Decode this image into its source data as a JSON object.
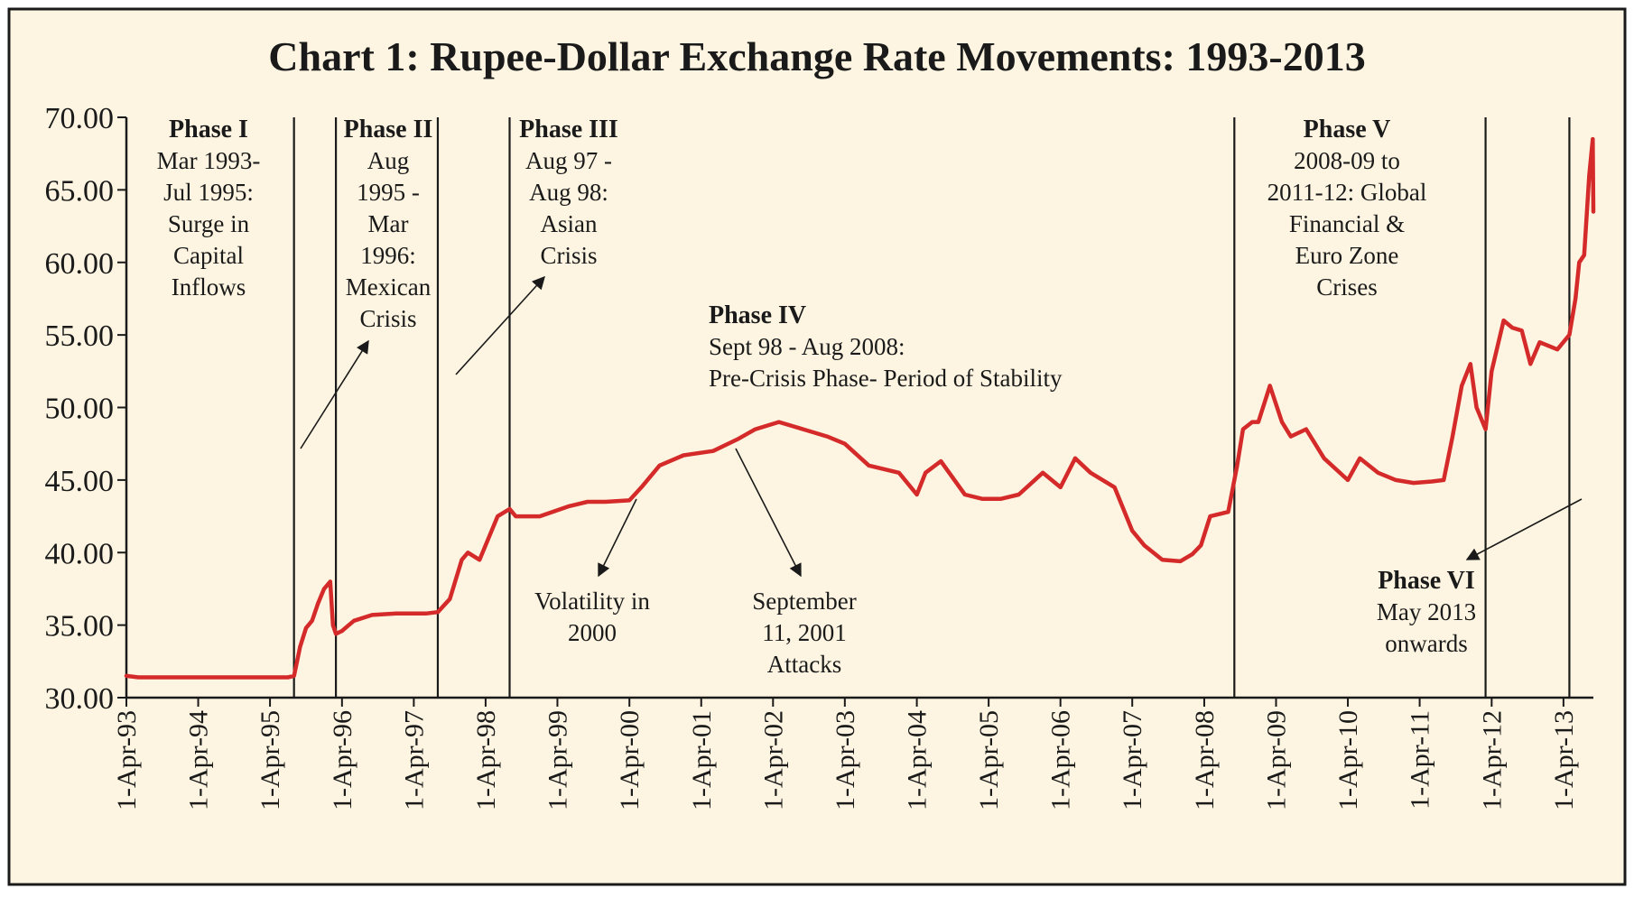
{
  "chart_data": {
    "type": "line",
    "title": "Chart 1: Rupee-Dollar Exchange Rate Movements: 1993-2013",
    "xlabel": "",
    "ylabel": "",
    "ylim": [
      30,
      70
    ],
    "xlim": [
      "1993-04-01",
      "2013-08-31"
    ],
    "yticks": [
      "30.00",
      "35.00",
      "40.00",
      "45.00",
      "50.00",
      "55.00",
      "60.00",
      "65.00",
      "70.00"
    ],
    "xticks": [
      "1-Apr-93",
      "1-Apr-94",
      "1-Apr-95",
      "1-Apr-96",
      "1-Apr-97",
      "1-Apr-98",
      "1-Apr-99",
      "1-Apr-00",
      "1-Apr-01",
      "1-Apr-02",
      "1-Apr-03",
      "1-Apr-04",
      "1-Apr-05",
      "1-Apr-06",
      "1-Apr-07",
      "1-Apr-08",
      "1-Apr-09",
      "1-Apr-10",
      "1-Apr-11",
      "1-Apr-12",
      "1-Apr-13"
    ],
    "grid": false,
    "colors": {
      "line": "#d42a2a",
      "background": "#fdf5e1",
      "frame": "#1a1a1a"
    },
    "phase_boundaries": [
      "1995-08-01",
      "1996-03-01",
      "1997-08-01",
      "1998-08-01",
      "2008-09-01",
      "2012-03-01",
      "2013-05-01"
    ],
    "series": [
      {
        "name": "",
        "x": [
          "1993-04-01",
          "1993-06-01",
          "1993-09-01",
          "1994-01-01",
          "1994-06-01",
          "1995-01-01",
          "1995-03-01",
          "1995-07-01",
          "1995-08-01",
          "1995-09-01",
          "1995-10-01",
          "1995-11-01",
          "1995-12-01",
          "1996-01-01",
          "1996-02-01",
          "1996-02-15",
          "1996-03-01",
          "1996-04-01",
          "1996-06-01",
          "1996-09-01",
          "1997-01-01",
          "1997-06-01",
          "1997-08-01",
          "1997-10-01",
          "1997-12-01",
          "1998-01-01",
          "1998-03-01",
          "1998-06-01",
          "1998-08-01",
          "1998-09-01",
          "1999-01-01",
          "1999-06-01",
          "1999-09-01",
          "1999-12-01",
          "2000-04-01",
          "2000-06-01",
          "2000-09-01",
          "2001-01-01",
          "2001-06-01",
          "2001-10-01",
          "2002-01-01",
          "2002-05-01",
          "2002-09-01",
          "2003-01-01",
          "2003-04-01",
          "2003-08-01",
          "2004-01-01",
          "2004-04-01",
          "2004-05-15",
          "2004-08-01",
          "2004-12-01",
          "2005-03-01",
          "2005-06-01",
          "2005-09-01",
          "2006-01-01",
          "2006-04-01",
          "2006-06-15",
          "2006-09-01",
          "2007-01-01",
          "2007-04-01",
          "2007-06-01",
          "2007-09-01",
          "2007-12-01",
          "2008-02-01",
          "2008-03-15",
          "2008-05-01",
          "2008-08-01",
          "2008-09-15",
          "2008-10-15",
          "2008-12-01",
          "2009-01-01",
          "2009-03-01",
          "2009-05-01",
          "2009-06-15",
          "2009-09-01",
          "2009-12-01",
          "2010-04-01",
          "2010-06-01",
          "2010-09-01",
          "2010-12-01",
          "2011-03-01",
          "2011-06-01",
          "2011-08-01",
          "2011-09-15",
          "2011-11-01",
          "2011-12-15",
          "2012-01-15",
          "2012-03-01",
          "2012-04-01",
          "2012-06-01",
          "2012-07-15",
          "2012-09-01",
          "2012-10-15",
          "2012-12-01",
          "2013-03-01",
          "2013-05-01",
          "2013-06-01",
          "2013-06-20",
          "2013-07-15",
          "2013-08-10",
          "2013-08-28",
          "2013-08-31"
        ],
        "values": [
          31.5,
          31.4,
          31.4,
          31.4,
          31.4,
          31.4,
          31.4,
          31.4,
          31.5,
          33.5,
          34.8,
          35.3,
          36.5,
          37.5,
          38.0,
          35.0,
          34.4,
          34.6,
          35.3,
          35.7,
          35.8,
          35.8,
          35.9,
          36.8,
          39.5,
          40.0,
          39.5,
          42.5,
          43.0,
          42.5,
          42.5,
          43.2,
          43.5,
          43.5,
          43.6,
          44.5,
          46.0,
          46.7,
          47.0,
          47.8,
          48.5,
          49.0,
          48.5,
          48.0,
          47.5,
          46.0,
          45.5,
          44.0,
          45.5,
          46.3,
          44.0,
          43.7,
          43.7,
          44.0,
          45.5,
          44.5,
          46.5,
          45.5,
          44.5,
          41.5,
          40.5,
          39.5,
          39.4,
          39.9,
          40.5,
          42.5,
          42.8,
          46.0,
          48.5,
          49.0,
          49.0,
          51.5,
          49.0,
          48.0,
          48.5,
          46.5,
          45.0,
          46.5,
          45.5,
          45.0,
          44.8,
          44.9,
          45.0,
          48.0,
          51.5,
          53.0,
          50.0,
          48.5,
          52.5,
          56.0,
          55.5,
          55.3,
          53.0,
          54.5,
          54.0,
          55.0,
          57.5,
          60.0,
          60.5,
          66.0,
          68.5,
          63.5
        ]
      }
    ],
    "annotations": [
      {
        "id": "phase-1",
        "title": "Phase I",
        "lines": [
          "Mar 1993-",
          "Jul 1995:",
          "Surge in",
          "Capital",
          "Inflows"
        ]
      },
      {
        "id": "phase-2",
        "title": "Phase II",
        "lines": [
          "Aug",
          "1995 -",
          "Mar",
          "1996:",
          "Mexican",
          "Crisis"
        ]
      },
      {
        "id": "phase-3",
        "title": "Phase III",
        "lines": [
          "Aug 97 -",
          "Aug 98:",
          "Asian",
          "Crisis"
        ]
      },
      {
        "id": "phase-4",
        "title": "Phase IV",
        "lines": [
          "Sept 98 - Aug 2008:",
          "Pre-Crisis Phase- Period of Stability"
        ]
      },
      {
        "id": "phase-5",
        "title": "Phase V",
        "lines": [
          "2008-09 to",
          "2011-12: Global",
          "Financial &",
          "Euro Zone",
          "Crises"
        ]
      },
      {
        "id": "phase-6",
        "title": "Phase VI",
        "lines": [
          "May 2013",
          "onwards"
        ]
      },
      {
        "id": "volatility-2000",
        "title": "",
        "lines": [
          "Volatility in",
          "2000"
        ]
      },
      {
        "id": "sept-11",
        "title": "",
        "lines": [
          "September",
          "11, 2001",
          "Attacks"
        ]
      }
    ]
  }
}
